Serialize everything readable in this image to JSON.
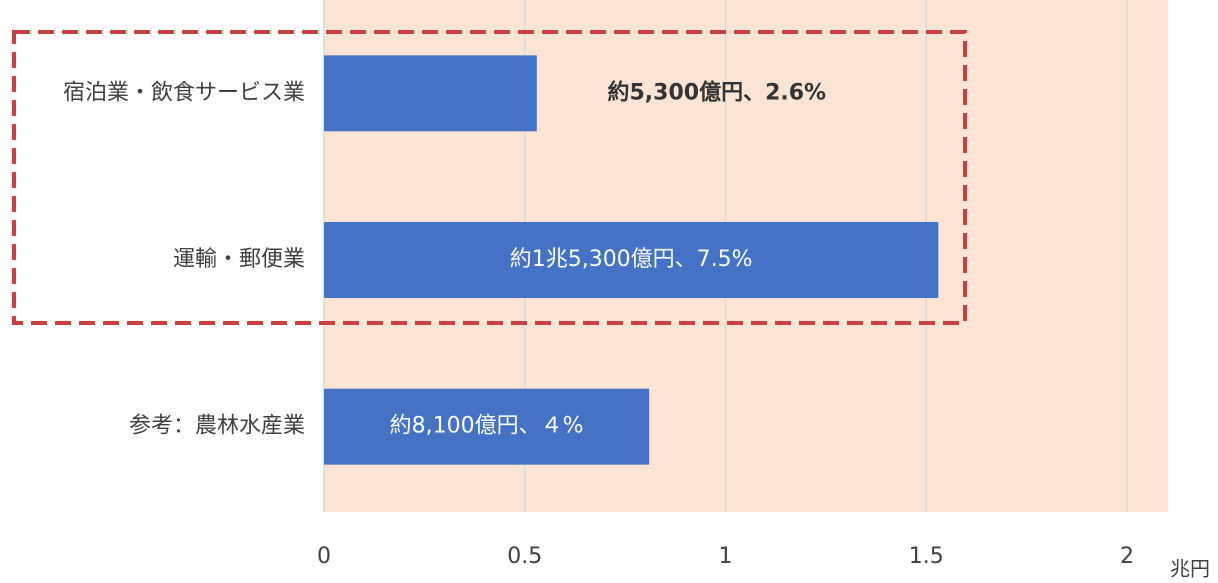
{
  "chart_data": {
    "type": "barh",
    "categories": [
      "宿泊業・飲食サービス業",
      "運輸・郵便業",
      "参考：農林水産業"
    ],
    "values": [
      0.53,
      1.53,
      0.81
    ],
    "value_labels": [
      "約5,300億円、2.6%",
      "約1兆5,300億円、7.5%",
      "約8,100億円、４%"
    ],
    "color": "#4472c4",
    "xlim": [
      0,
      2
    ],
    "xticks": [
      0,
      0.5,
      1,
      1.5,
      2
    ],
    "x_label": "兆円",
    "grid": true
  }
}
